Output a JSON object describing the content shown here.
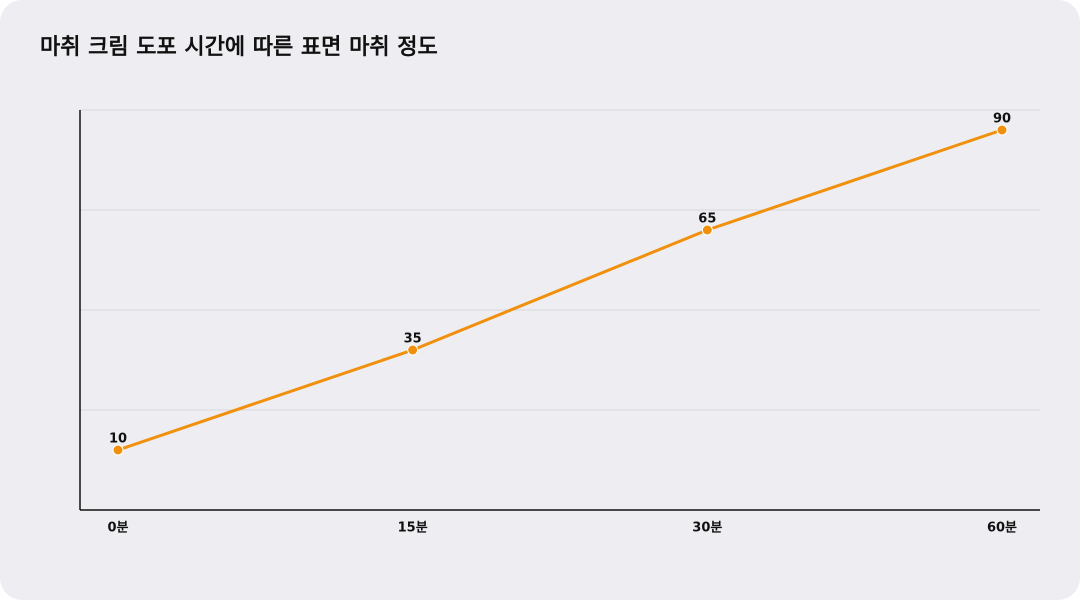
{
  "chart_data": {
    "type": "line",
    "title": "마취 크림 도포 시간에 따른 표면 마취 정도",
    "categories": [
      "0분",
      "15분",
      "30분",
      "60분"
    ],
    "series": [
      {
        "name": "표면 마취 정도",
        "color": "#f0900c",
        "values": [
          10,
          35,
          65,
          90
        ]
      }
    ],
    "ylim": [
      -5,
      95
    ],
    "yticks": [
      20,
      45,
      70,
      95
    ],
    "grid": true
  }
}
